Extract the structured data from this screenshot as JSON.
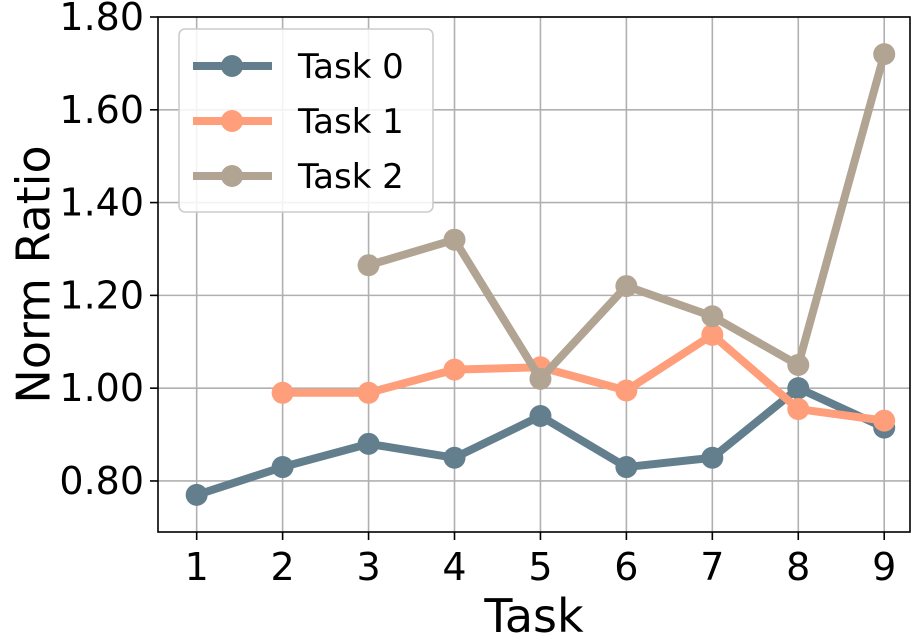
{
  "chart_data": {
    "type": "line",
    "xlabel": "Task",
    "ylabel": "Norm Ratio",
    "x": [
      1,
      2,
      3,
      4,
      5,
      6,
      7,
      8,
      9
    ],
    "xlim": [
      0.55,
      9.3
    ],
    "ylim": [
      0.69,
      1.8
    ],
    "yticks": [
      0.8,
      1.0,
      1.2,
      1.4,
      1.6,
      1.8
    ],
    "ytick_labels": [
      "0.80",
      "1.00",
      "1.20",
      "1.40",
      "1.60",
      "1.80"
    ],
    "xtick_labels": [
      "1",
      "2",
      "3",
      "4",
      "5",
      "6",
      "7",
      "8",
      "9"
    ],
    "grid": true,
    "legend_position": "top-left",
    "series": [
      {
        "name": "Task 0",
        "color": "#637f8e",
        "points": [
          [
            1,
            0.77
          ],
          [
            2,
            0.83
          ],
          [
            3,
            0.88
          ],
          [
            4,
            0.85
          ],
          [
            5,
            0.94
          ],
          [
            6,
            0.83
          ],
          [
            7,
            0.85
          ],
          [
            8,
            1.0
          ],
          [
            9,
            0.915
          ]
        ]
      },
      {
        "name": "Task 1",
        "color": "#ff9e7a",
        "points": [
          [
            2,
            0.99
          ],
          [
            3,
            0.99
          ],
          [
            4,
            1.04
          ],
          [
            5,
            1.045
          ],
          [
            6,
            0.995
          ],
          [
            7,
            1.115
          ],
          [
            8,
            0.955
          ],
          [
            9,
            0.93
          ]
        ]
      },
      {
        "name": "Task 2",
        "color": "#b2a493",
        "points": [
          [
            3,
            1.265
          ],
          [
            4,
            1.32
          ],
          [
            5,
            1.02
          ],
          [
            6,
            1.22
          ],
          [
            7,
            1.155
          ],
          [
            8,
            1.05
          ],
          [
            9,
            1.72
          ]
        ]
      }
    ]
  }
}
